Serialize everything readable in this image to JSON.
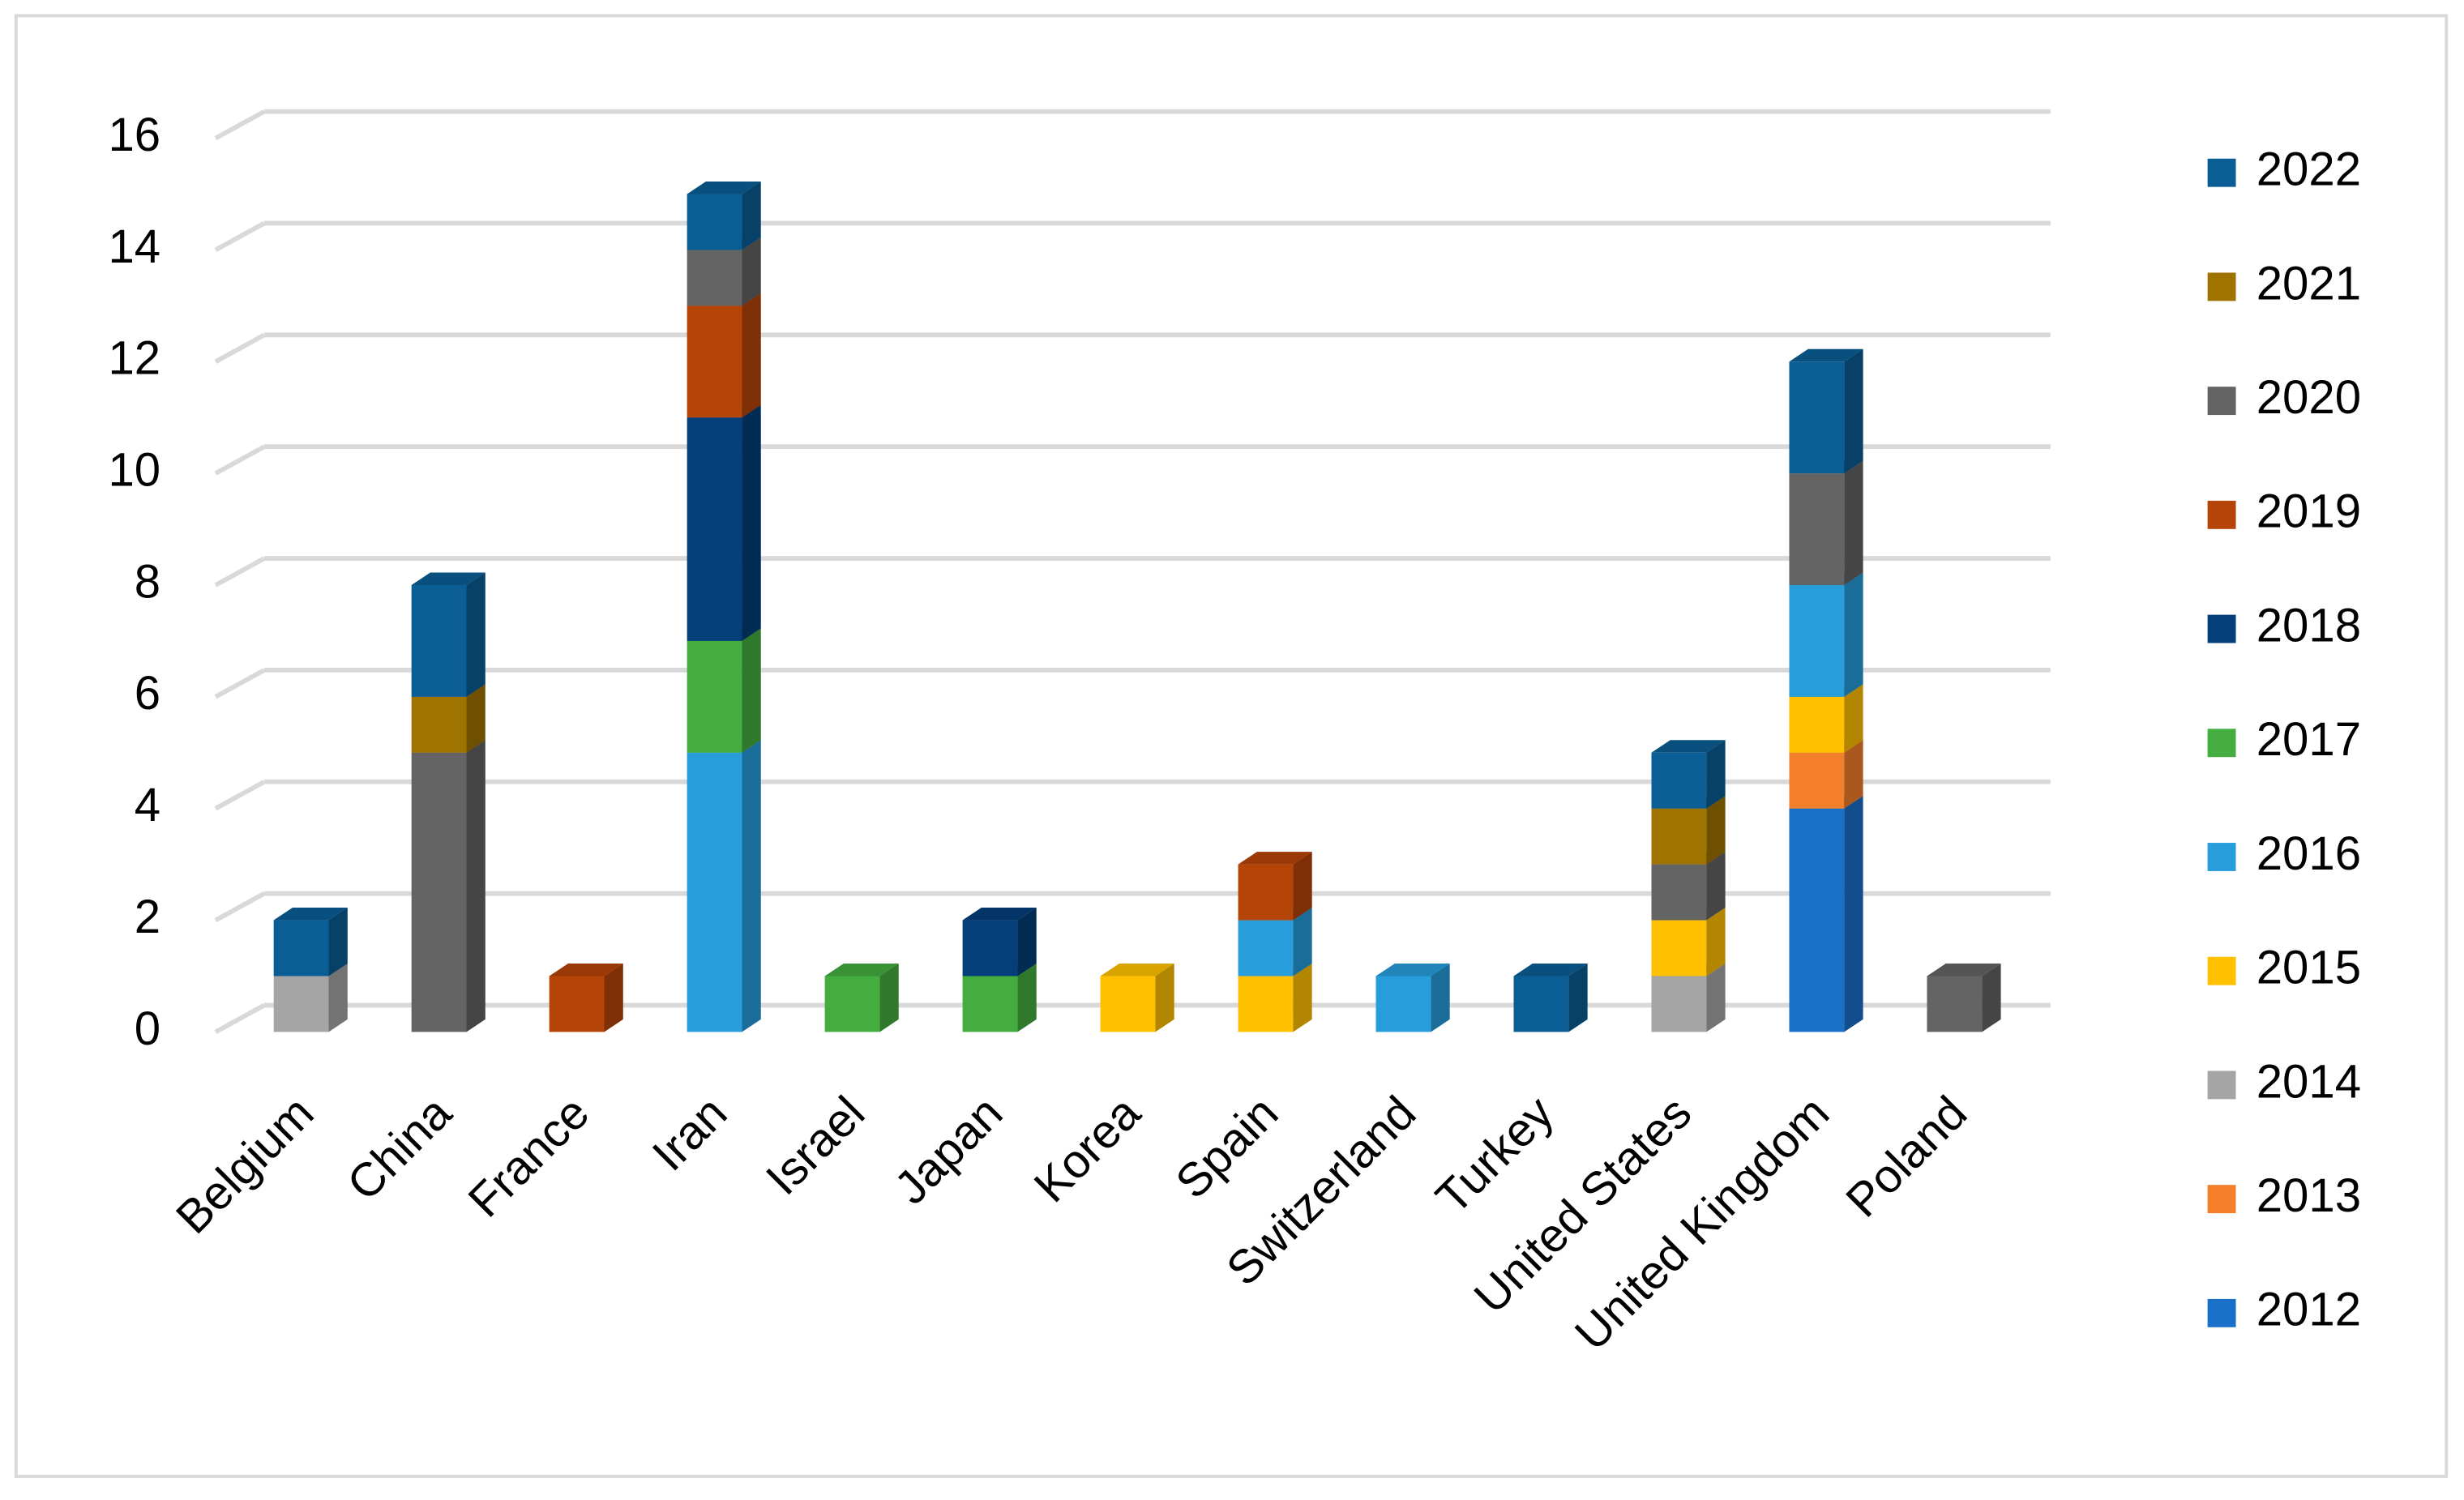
{
  "chart_data": {
    "type": "bar3d-stacked",
    "categories": [
      "Belgium",
      "China",
      "France",
      "Iran",
      "Israel",
      "Japan",
      "Korea",
      "Spain",
      "Switzerland",
      "Turkey",
      "United States",
      "United Kingdom",
      "Poland"
    ],
    "series": [
      {
        "name": "2012",
        "color": "#1a70c8",
        "values": [
          0,
          0,
          0,
          0,
          0,
          0,
          0,
          0,
          0,
          0,
          0,
          4,
          0
        ]
      },
      {
        "name": "2013",
        "color": "#f47f2b",
        "values": [
          0,
          0,
          0,
          0,
          0,
          0,
          0,
          0,
          0,
          0,
          0,
          1,
          0
        ]
      },
      {
        "name": "2014",
        "color": "#a5a5a5",
        "values": [
          1,
          0,
          0,
          0,
          0,
          0,
          0,
          0,
          0,
          0,
          1,
          0,
          0
        ]
      },
      {
        "name": "2015",
        "color": "#ffc000",
        "values": [
          0,
          0,
          0,
          0,
          0,
          0,
          1,
          1,
          0,
          0,
          1,
          1,
          0
        ]
      },
      {
        "name": "2016",
        "color": "#289ddb",
        "values": [
          0,
          0,
          0,
          5,
          0,
          0,
          0,
          1,
          1,
          0,
          0,
          2,
          0
        ]
      },
      {
        "name": "2017",
        "color": "#44ad40",
        "values": [
          0,
          0,
          0,
          2,
          1,
          1,
          0,
          0,
          0,
          0,
          0,
          0,
          0
        ]
      },
      {
        "name": "2018",
        "color": "#053f79",
        "values": [
          0,
          0,
          0,
          4,
          0,
          1,
          0,
          0,
          0,
          0,
          0,
          0,
          0
        ]
      },
      {
        "name": "2019",
        "color": "#b54408",
        "values": [
          0,
          0,
          1,
          2,
          0,
          0,
          0,
          1,
          0,
          0,
          0,
          0,
          0
        ]
      },
      {
        "name": "2020",
        "color": "#646464",
        "values": [
          0,
          5,
          0,
          1,
          0,
          0,
          0,
          0,
          0,
          0,
          1,
          2,
          1
        ]
      },
      {
        "name": "2021",
        "color": "#9f7300",
        "values": [
          0,
          1,
          0,
          0,
          0,
          0,
          0,
          0,
          0,
          0,
          1,
          0,
          0
        ]
      },
      {
        "name": "2022",
        "color": "#0b5e95",
        "values": [
          1,
          2,
          0,
          1,
          0,
          0,
          0,
          0,
          0,
          1,
          1,
          2,
          0
        ]
      }
    ],
    "ylim": [
      0,
      16
    ],
    "yticks": [
      0,
      2,
      4,
      6,
      8,
      10,
      12,
      14,
      16
    ],
    "grid": true,
    "legend": "right"
  }
}
